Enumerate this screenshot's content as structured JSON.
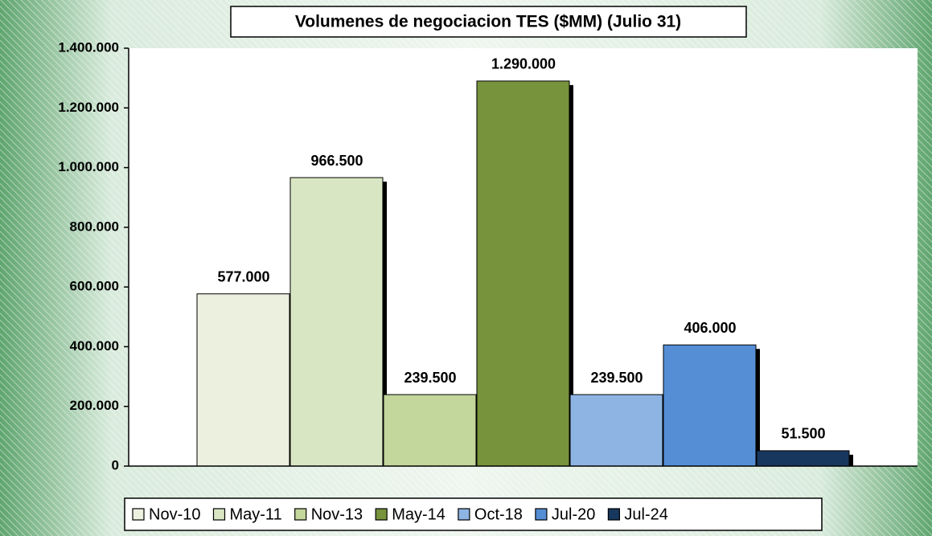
{
  "chart_data": {
    "type": "bar",
    "title": "Volumenes de negociacion TES ($MM) (Julio 31)",
    "categories": [
      null
    ],
    "series": [
      {
        "name": "Nov-10",
        "color": "#ebf0df",
        "values": [
          577000
        ],
        "value_labels": [
          "577.000"
        ]
      },
      {
        "name": "May-11",
        "color": "#d9e6c3",
        "values": [
          966500
        ],
        "value_labels": [
          "966.500"
        ]
      },
      {
        "name": "Nov-13",
        "color": "#c3d69b",
        "values": [
          239500
        ],
        "value_labels": [
          "239.500"
        ]
      },
      {
        "name": "May-14",
        "color": "#77933c",
        "values": [
          1290000
        ],
        "value_labels": [
          "1.290.000"
        ]
      },
      {
        "name": "Oct-18",
        "color": "#8eb4e3",
        "values": [
          239500
        ],
        "value_labels": [
          "239.500"
        ]
      },
      {
        "name": "Jul-20",
        "color": "#558ed5",
        "values": [
          406000
        ],
        "value_labels": [
          "406.000"
        ]
      },
      {
        "name": "Jul-24",
        "color": "#17375e",
        "values": [
          51500
        ],
        "value_labels": [
          "51.500"
        ]
      }
    ],
    "ylim": [
      0,
      1400000
    ],
    "yticks": [
      0,
      {
        "value": 200000,
        "label": "200.000"
      },
      {
        "value": 400000,
        "label": "400.000"
      },
      {
        "value": 600000,
        "label": "600.000"
      },
      {
        "value": 800000,
        "label": "800.000"
      },
      {
        "value": 1000000,
        "label": "1.000.000"
      },
      {
        "value": 1200000,
        "label": "1.200.000"
      },
      {
        "value": 1400000,
        "label": "1.400.000"
      }
    ],
    "legend": "bottom"
  }
}
